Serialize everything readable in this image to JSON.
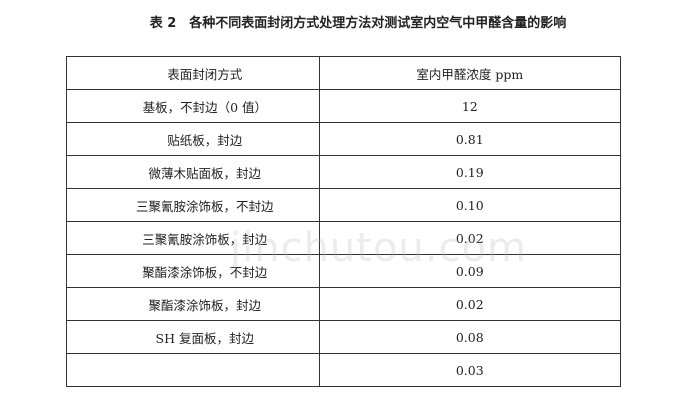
{
  "title": "表 2　各种不同表面封闭方式处理方法对测试室内空气中甲醛含量的影响",
  "table": {
    "headers": [
      "表面封闭方式",
      "室内甲醛浓度 ppm"
    ],
    "rows": [
      {
        "method": "基板，不封边（0 值）",
        "value": "12"
      },
      {
        "method": "贴纸板，封边",
        "value": "0.81"
      },
      {
        "method": "微薄木贴面板，封边",
        "value": "0.19"
      },
      {
        "method": "三聚氰胺涂饰板，不封边",
        "value": "0.10"
      },
      {
        "method": "三聚氰胺涂饰板，封边",
        "value": "0.02"
      },
      {
        "method": "聚酯漆涂饰板，不封边",
        "value": "0.09"
      },
      {
        "method": "聚酯漆涂饰板，封边",
        "value": "0.02"
      },
      {
        "method": "SH 复面板，封边",
        "value": "0.08"
      },
      {
        "method": "",
        "value": "0.03"
      }
    ]
  },
  "watermark": "jinchutou.com"
}
